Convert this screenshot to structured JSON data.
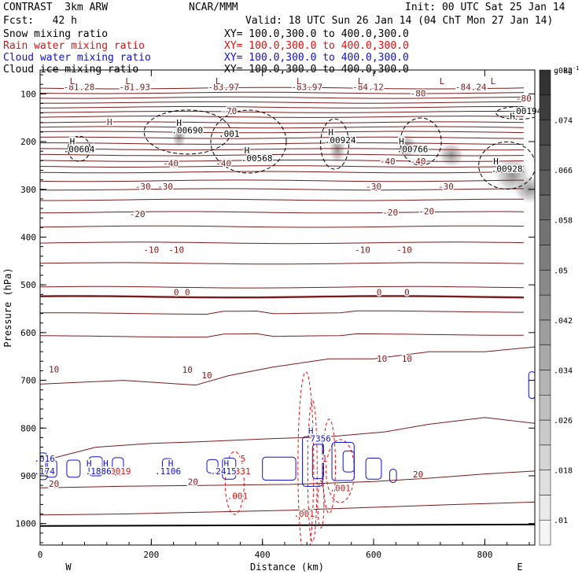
{
  "header": {
    "title": "CONTRAST  3km ARW",
    "source": "NCAR/MMM",
    "init": "Init: 00 UTC Sat 25 Jan 14",
    "fcst": "Fcst:   42 h",
    "valid": "Valid: 18 UTC Sun 26 Jan 14 (04 ChT Mon 27 Jan 14)",
    "fields": [
      {
        "label": "Snow mixing ratio",
        "xy": "XY= 100.0,300.0 to 400.0,300.0",
        "color": "#000000"
      },
      {
        "label": "Rain water mixing ratio",
        "xy": "XY= 100.0,300.0 to 400.0,300.0",
        "color": "#e01010"
      },
      {
        "label": "Cloud water mixing ratio",
        "xy": "XY= 100.0,300.0 to 400.0,300.0",
        "color": "#1010d0"
      },
      {
        "label": "Cloud ice mixing ratio",
        "xy": "XY= 100.0,300.0 to 400.0,300.0",
        "color": "#000000"
      }
    ]
  },
  "chart_data": {
    "type": "heatmap",
    "xlabel": "Distance (km)",
    "ylabel": "Pressure (hPa)",
    "xlim": [
      0,
      890
    ],
    "ylim": [
      1045,
      50
    ],
    "x_ticks": [
      0,
      200,
      400,
      600,
      800
    ],
    "y_ticks": [
      100,
      200,
      300,
      400,
      500,
      600,
      700,
      800,
      900,
      1000
    ],
    "x_end_labels": {
      "left": "W",
      "right": "E"
    },
    "colorbar": {
      "units": "g kg",
      "units_sup": "-1",
      "levels": [
        ".01",
        ".018",
        ".026",
        ".034",
        ".042",
        ".05",
        ".058",
        ".066",
        ".074",
        ".082"
      ]
    },
    "temperature_contours": {
      "color": "#7a1a1a",
      "labels": [
        {
          "text": "-81.28",
          "x": 70,
          "p": 92
        },
        {
          "text": "-81.93",
          "x": 170,
          "p": 92
        },
        {
          "text": "-83.97",
          "x": 330,
          "p": 92
        },
        {
          "text": "-83.97",
          "x": 480,
          "p": 92
        },
        {
          "text": "-84.12",
          "x": 590,
          "p": 92
        },
        {
          "text": "-84.24",
          "x": 775,
          "p": 92
        },
        {
          "text": "-80",
          "x": 680,
          "p": 105
        },
        {
          "text": "-80",
          "x": 870,
          "p": 116
        },
        {
          "text": "-70",
          "x": 340,
          "p": 142
        },
        {
          "text": "-40",
          "x": 235,
          "p": 252
        },
        {
          "text": "-40",
          "x": 330,
          "p": 252
        },
        {
          "text": "-40",
          "x": 625,
          "p": 248
        },
        {
          "text": "-40",
          "x": 680,
          "p": 248
        },
        {
          "text": "-30",
          "x": 185,
          "p": 300
        },
        {
          "text": "-30",
          "x": 225,
          "p": 300
        },
        {
          "text": "-30",
          "x": 600,
          "p": 300
        },
        {
          "text": "-30",
          "x": 730,
          "p": 300
        },
        {
          "text": "-20",
          "x": 175,
          "p": 358
        },
        {
          "text": "-20",
          "x": 630,
          "p": 355
        },
        {
          "text": "-20",
          "x": 695,
          "p": 352
        },
        {
          "text": "-10",
          "x": 200,
          "p": 433
        },
        {
          "text": "-10",
          "x": 245,
          "p": 433
        },
        {
          "text": "-10",
          "x": 580,
          "p": 433
        },
        {
          "text": "-10",
          "x": 655,
          "p": 433
        },
        {
          "text": "0",
          "x": 245,
          "p": 522
        },
        {
          "text": "0",
          "x": 265,
          "p": 522
        },
        {
          "text": "0",
          "x": 610,
          "p": 522
        },
        {
          "text": "0",
          "x": 660,
          "p": 522
        },
        {
          "text": "10",
          "x": 25,
          "p": 683
        },
        {
          "text": "10",
          "x": 265,
          "p": 684
        },
        {
          "text": "10",
          "x": 300,
          "p": 696
        },
        {
          "text": "10",
          "x": 615,
          "p": 661
        },
        {
          "text": "10",
          "x": 660,
          "p": 661
        },
        {
          "text": "20",
          "x": 25,
          "p": 923
        },
        {
          "text": "20",
          "x": 275,
          "p": 919
        },
        {
          "text": "20",
          "x": 680,
          "p": 903
        }
      ]
    },
    "extrema_labels": [
      {
        "text": "H",
        "x": 125,
        "p": 165,
        "color": "#7a1a1a"
      },
      {
        "text": "H",
        "x": 850,
        "p": 153,
        "color": "#000000"
      },
      {
        "text": "L",
        "x": 58,
        "p": 80,
        "color": "#7a1a1a"
      },
      {
        "text": "L",
        "x": 158,
        "p": 80,
        "color": "#7a1a1a"
      },
      {
        "text": "L",
        "x": 320,
        "p": 80,
        "color": "#7a1a1a"
      },
      {
        "text": "L",
        "x": 466,
        "p": 80,
        "color": "#7a1a1a"
      },
      {
        "text": "L",
        "x": 576,
        "p": 80,
        "color": "#7a1a1a"
      },
      {
        "text": "L",
        "x": 723,
        "p": 80,
        "color": "#7a1a1a"
      },
      {
        "text": "L",
        "x": 815,
        "p": 80,
        "color": "#7a1a1a"
      },
      {
        "text": "H",
        "x": 58,
        "p": 206,
        "color": "#000000"
      },
      {
        "text": "H",
        "x": 250,
        "p": 167,
        "color": "#000000"
      },
      {
        "text": "H",
        "x": 372,
        "p": 225,
        "color": "#000000"
      },
      {
        "text": "H",
        "x": 523,
        "p": 187,
        "color": "#000000"
      },
      {
        "text": "H",
        "x": 650,
        "p": 206,
        "color": "#000000"
      },
      {
        "text": "H",
        "x": 820,
        "p": 248,
        "color": "#000000"
      },
      {
        "text": "H",
        "x": 88,
        "p": 880,
        "color": "#1010d0"
      },
      {
        "text": "H",
        "x": 118,
        "p": 880,
        "color": "#1010d0"
      },
      {
        "text": "H",
        "x": 235,
        "p": 880,
        "color": "#1010d0"
      },
      {
        "text": "H",
        "x": 335,
        "p": 880,
        "color": "#1010d0"
      },
      {
        "text": "H",
        "x": 487,
        "p": 812,
        "color": "#1010d0"
      }
    ],
    "snow_labels": [
      {
        "text": ".00604",
        "x": 70,
        "p": 222
      },
      {
        "text": ".00690",
        "x": 265,
        "p": 183
      },
      {
        "text": ".001",
        "x": 340,
        "p": 190
      },
      {
        "text": ".00568",
        "x": 390,
        "p": 241
      },
      {
        "text": ".00924",
        "x": 540,
        "p": 203
      },
      {
        "text": ".00766",
        "x": 670,
        "p": 222
      },
      {
        "text": ".00928",
        "x": 840,
        "p": 263
      },
      {
        "text": ".00194",
        "x": 875,
        "p": 142
      }
    ],
    "rain_labels": [
      {
        "text": ".0019",
        "x": 140,
        "p": 897
      },
      {
        "text": ".001",
        "x": 355,
        "p": 949
      },
      {
        "text": ".001",
        "x": 475,
        "p": 986
      },
      {
        "text": "1",
        "x": 512,
        "p": 870
      },
      {
        "text": "3331",
        "x": 360,
        "p": 897
      },
      {
        "text": ".001",
        "x": 540,
        "p": 932
      },
      {
        "text": "5",
        "x": 365,
        "p": 870
      }
    ],
    "cloud_water_labels": [
      {
        "text": ".016",
        "x": 8,
        "p": 870
      },
      {
        "text": ".174",
        "x": 8,
        "p": 897
      },
      {
        "text": ".1886",
        "x": 105,
        "p": 897
      },
      {
        "text": ".1106",
        "x": 230,
        "p": 897
      },
      {
        "text": ".2415",
        "x": 330,
        "p": 897
      },
      {
        "text": ".7356",
        "x": 500,
        "p": 828
      }
    ],
    "series": [
      {
        "name": "Snow mixing ratio",
        "color": "#000000"
      },
      {
        "name": "Rain water mixing ratio",
        "color": "#e01010"
      },
      {
        "name": "Cloud water mixing ratio",
        "color": "#1010d0"
      },
      {
        "name": "Cloud ice mixing ratio",
        "color": "#000000"
      }
    ]
  }
}
